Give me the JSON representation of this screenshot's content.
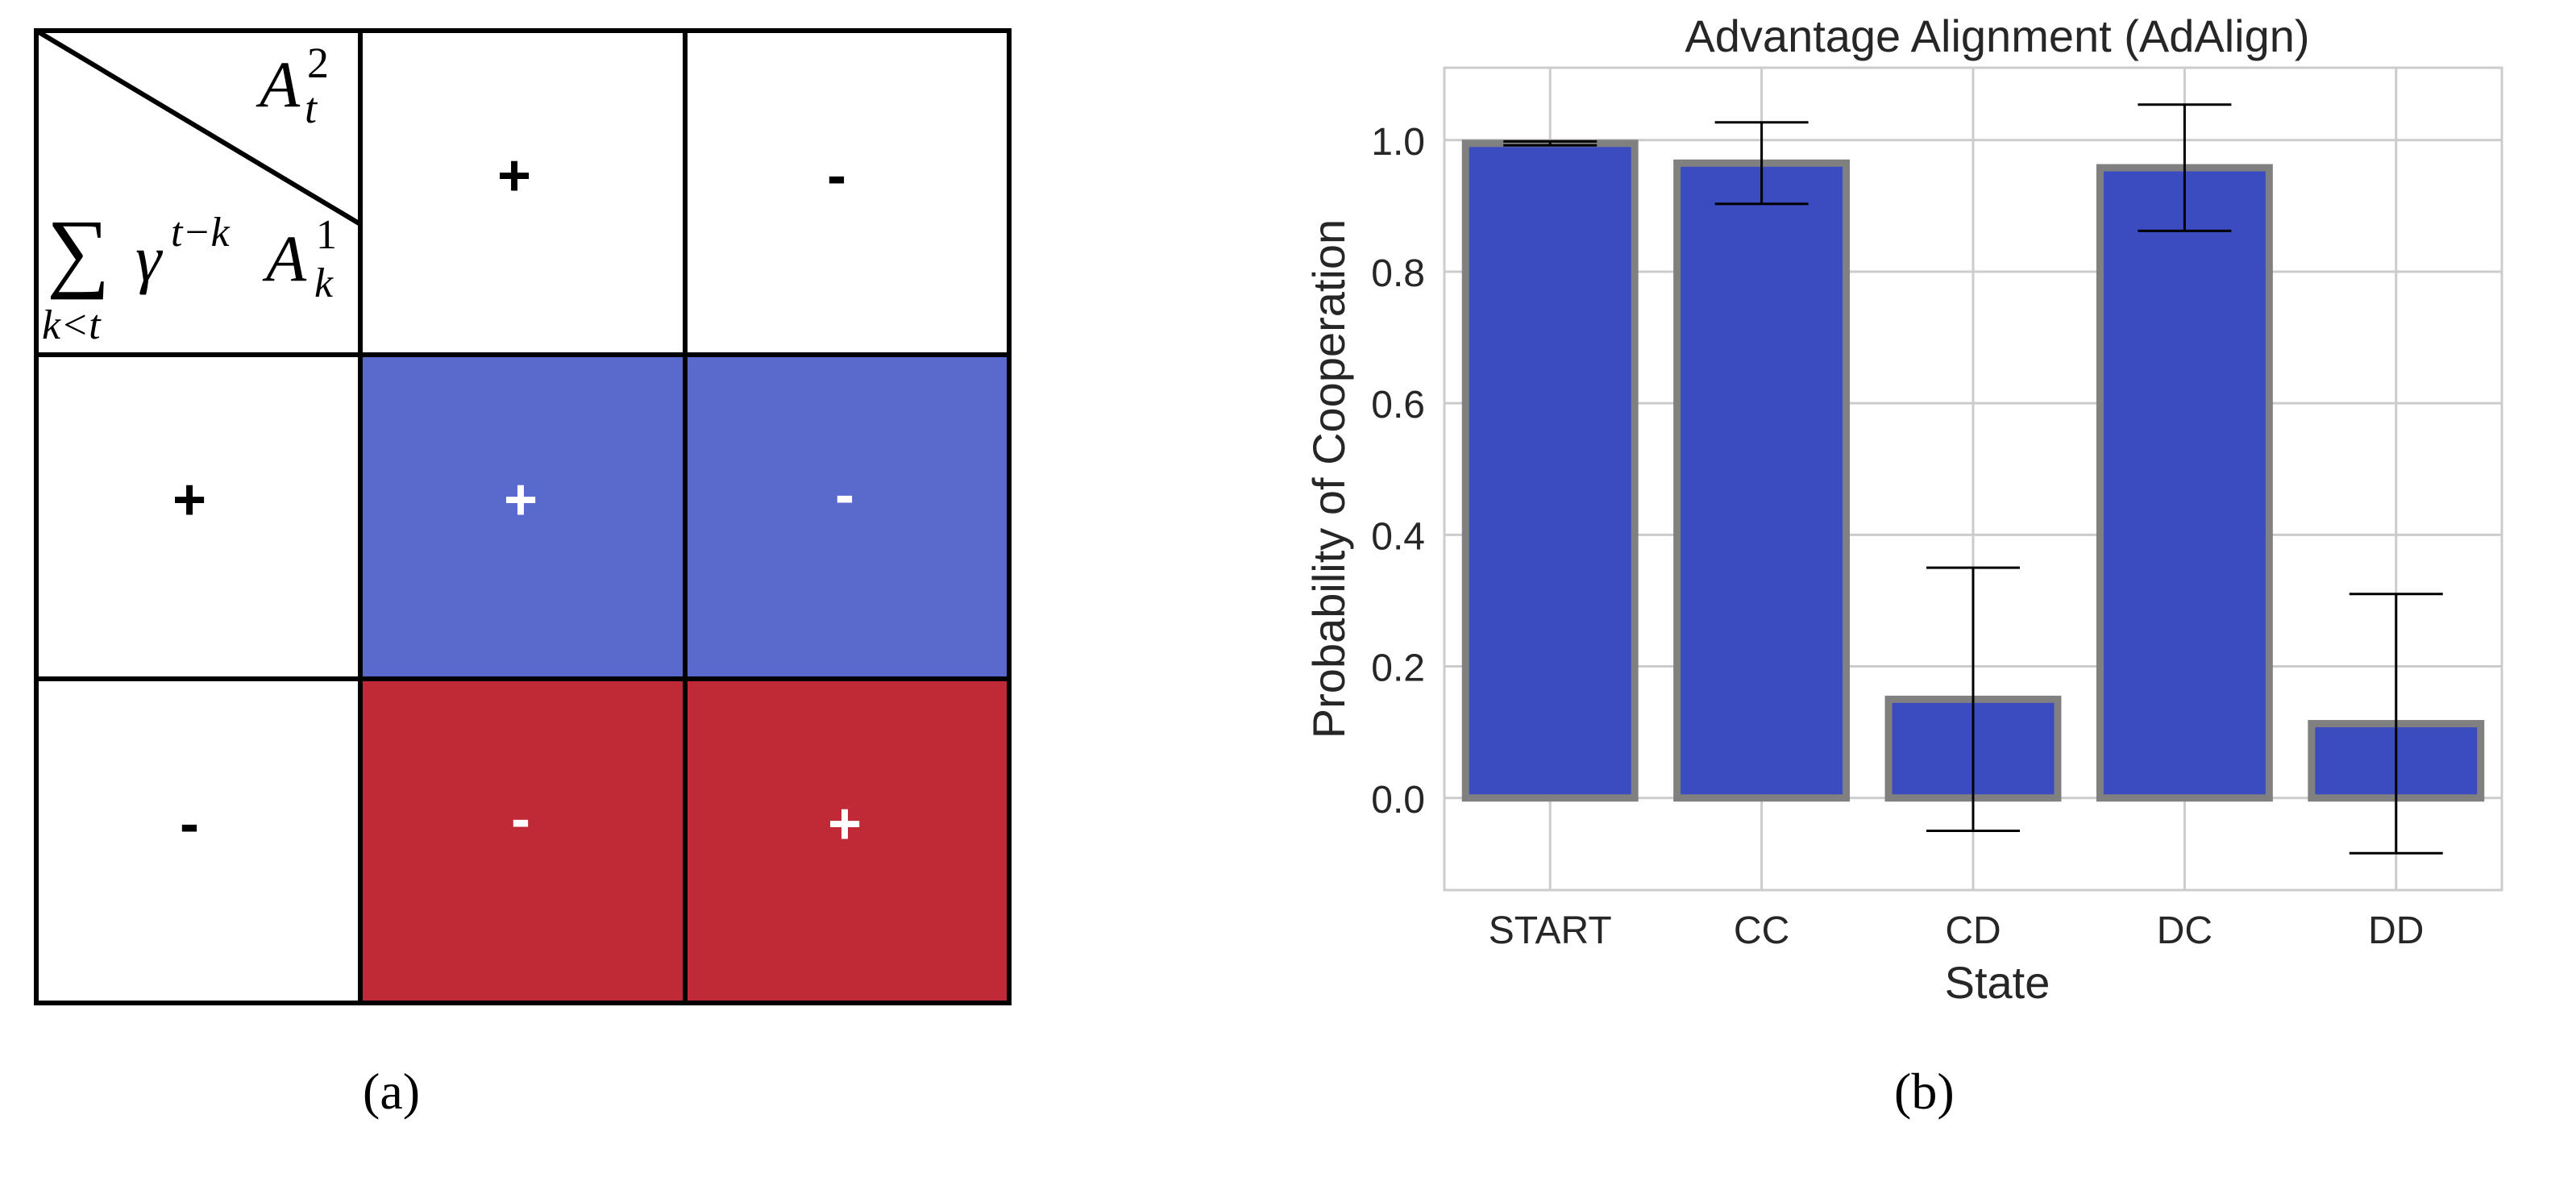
{
  "panel_a": {
    "caption": "(a)",
    "header_top": "A_t^2",
    "header_bottom": "Σ_{k<t} γ^{t−k} A_k^1",
    "col_headers": [
      "+",
      "-"
    ],
    "row_headers": [
      "+",
      "-"
    ],
    "cells": [
      [
        "+",
        "-"
      ],
      [
        "-",
        "+"
      ]
    ],
    "row_colors": [
      "#5a69cc",
      "#c02a36"
    ]
  },
  "panel_b": {
    "caption": "(b)"
  },
  "chart_data": {
    "type": "bar",
    "title": "Advantage Alignment (AdAlign)",
    "xlabel": "State",
    "ylabel": "Probability of Cooperation",
    "categories": [
      "START",
      "CC",
      "CD",
      "DC",
      "DD"
    ],
    "values": [
      0.995,
      0.965,
      0.15,
      0.958,
      0.113
    ],
    "errors": [
      0.003,
      0.062,
      0.2,
      0.096,
      0.197
    ],
    "ylim": [
      -0.14,
      1.11
    ],
    "yticks": [
      0.0,
      0.2,
      0.4,
      0.6,
      0.8,
      1.0
    ],
    "ytick_labels": [
      "0.0",
      "0.2",
      "0.4",
      "0.6",
      "0.8",
      "1.0"
    ],
    "grid": true,
    "bar_color": "#3b4cc0",
    "edge_color": "#808080"
  }
}
